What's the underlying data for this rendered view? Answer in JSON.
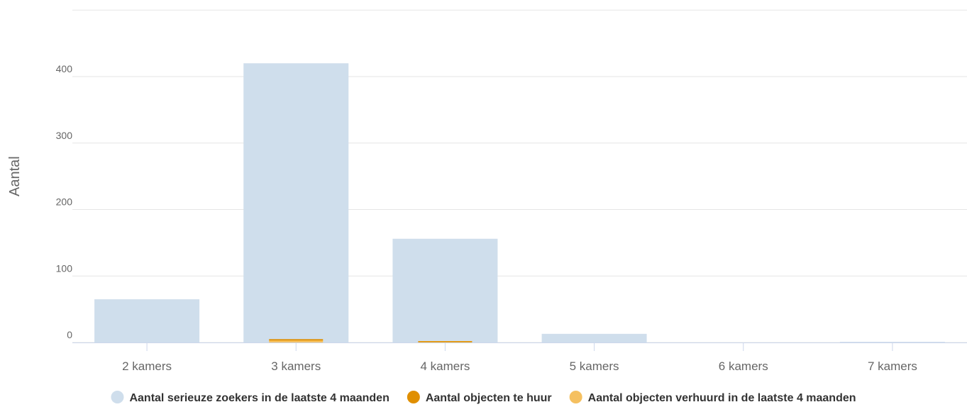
{
  "chart_data": {
    "type": "bar",
    "ylabel": "Aantal",
    "xlabel": "",
    "ylim": [
      0,
      500
    ],
    "yticks": [
      0,
      100,
      200,
      300,
      400
    ],
    "grid": true,
    "legend_position": "bottom",
    "categories": [
      "2 kamers",
      "3 kamers",
      "4 kamers",
      "5 kamers",
      "6 kamers",
      "7 kamers"
    ],
    "series": [
      {
        "name": "Aantal serieuze zoekers in de laatste 4 maanden",
        "color": "#cfdeec",
        "values": [
          65,
          420,
          156,
          13,
          0,
          1
        ]
      },
      {
        "name": "Aantal objecten te huur",
        "color": "#e08f00",
        "values": [
          0,
          5,
          2,
          0,
          0,
          0
        ]
      },
      {
        "name": "Aantal objecten verhuurd in de laatste 4 maanden",
        "color": "#f5c060",
        "values": [
          0,
          4,
          2,
          0,
          0,
          0
        ]
      }
    ]
  }
}
